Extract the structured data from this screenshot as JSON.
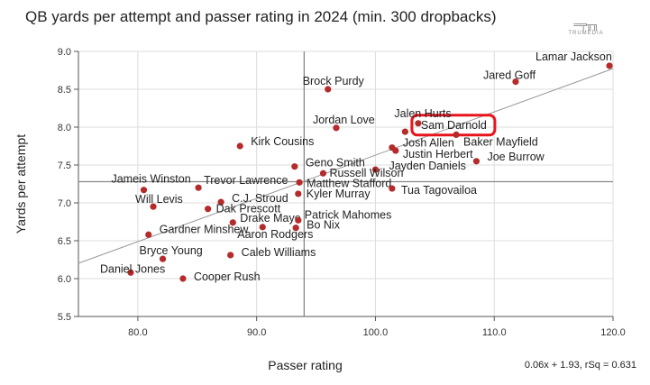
{
  "chart_data": {
    "type": "scatter",
    "title": "QB yards per attempt and passer rating in 2024 (min. 300 dropbacks)",
    "xlabel": "Passer rating",
    "ylabel": "Yards per attempt",
    "xlim": [
      75,
      120
    ],
    "ylim": [
      5.5,
      9.0
    ],
    "xticks": [
      "80.0",
      "90.0",
      "100.0",
      "110.0",
      "120.0"
    ],
    "yticks": [
      "5.5",
      "6.0",
      "6.5",
      "7.0",
      "7.5",
      "8.0",
      "8.5",
      "9.0"
    ],
    "grid": true,
    "mean_lines": {
      "x": 94.0,
      "y": 7.28
    },
    "trendline": {
      "label": "0.06x + 1.93, rSq = 0.631",
      "slope": 0.0571,
      "intercept": 1.92
    },
    "highlighted": "Sam Darnold",
    "point_color": "#b52a2a",
    "highlight_color": "#e8141b",
    "points": [
      {
        "name": "Lamar Jackson",
        "x": 119.7,
        "y": 8.81
      },
      {
        "name": "Jared Goff",
        "x": 111.8,
        "y": 8.6
      },
      {
        "name": "Brock Purdy",
        "x": 96.0,
        "y": 8.5
      },
      {
        "name": "Jordan Love",
        "x": 96.7,
        "y": 7.99
      },
      {
        "name": "Sam Darnold",
        "x": 103.6,
        "y": 8.05
      },
      {
        "name": "Jalen Hurts",
        "x": 102.5,
        "y": 7.94
      },
      {
        "name": "Baker Mayfield",
        "x": 106.8,
        "y": 7.9
      },
      {
        "name": "Josh Allen",
        "x": 101.4,
        "y": 7.73
      },
      {
        "name": "Justin Herbert",
        "x": 101.7,
        "y": 7.69
      },
      {
        "name": "Joe Burrow",
        "x": 108.5,
        "y": 7.55
      },
      {
        "name": "Jayden Daniels",
        "x": 100.0,
        "y": 7.44
      },
      {
        "name": "Russell Wilson",
        "x": 95.6,
        "y": 7.39
      },
      {
        "name": "Geno Smith",
        "x": 93.2,
        "y": 7.48
      },
      {
        "name": "Matthew Stafford",
        "x": 93.6,
        "y": 7.27
      },
      {
        "name": "Tua Tagovailoa",
        "x": 101.4,
        "y": 7.19
      },
      {
        "name": "Kyler Murray",
        "x": 93.5,
        "y": 7.12
      },
      {
        "name": "Kirk Cousins",
        "x": 88.6,
        "y": 7.75
      },
      {
        "name": "Jameis Winston",
        "x": 80.5,
        "y": 7.17
      },
      {
        "name": "Trevor Lawrence",
        "x": 85.1,
        "y": 7.2
      },
      {
        "name": "C.J. Stroud",
        "x": 87.0,
        "y": 7.01
      },
      {
        "name": "Dak Prescott",
        "x": 85.9,
        "y": 6.92
      },
      {
        "name": "Will Levis",
        "x": 81.3,
        "y": 6.95
      },
      {
        "name": "Drake Maye",
        "x": 88.0,
        "y": 6.74
      },
      {
        "name": "Patrick Mahomes",
        "x": 93.5,
        "y": 6.77
      },
      {
        "name": "Bo Nix",
        "x": 93.3,
        "y": 6.67
      },
      {
        "name": "Aaron Rodgers",
        "x": 90.5,
        "y": 6.68
      },
      {
        "name": "Gardner Minshew",
        "x": 80.9,
        "y": 6.58
      },
      {
        "name": "Caleb Williams",
        "x": 87.8,
        "y": 6.31
      },
      {
        "name": "Bryce Young",
        "x": 82.1,
        "y": 6.26
      },
      {
        "name": "Daniel Jones",
        "x": 79.4,
        "y": 6.08
      },
      {
        "name": "Cooper Rush",
        "x": 83.8,
        "y": 6.0
      }
    ]
  },
  "logo": {
    "text": "TRUMEDIA"
  }
}
